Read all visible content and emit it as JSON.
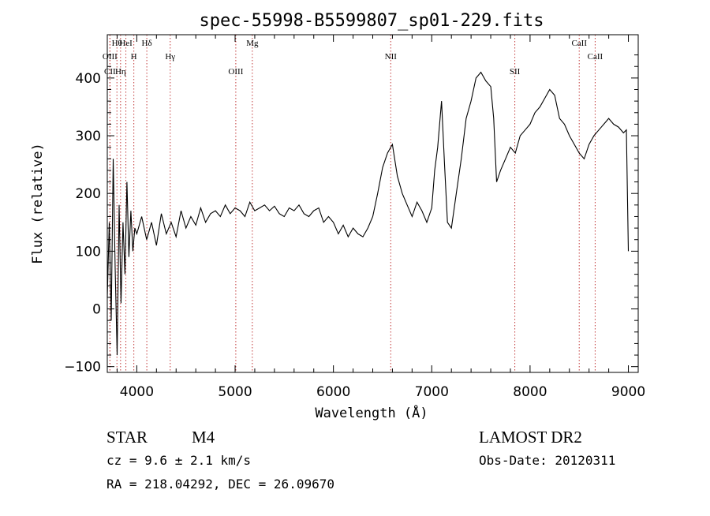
{
  "chart_data": {
    "type": "line",
    "title": "spec-55998-B5599807_sp01-229.fits",
    "xlabel": "Wavelength (Å)",
    "ylabel": "Flux (relative)",
    "xlim": [
      3700,
      9100
    ],
    "ylim": [
      -110,
      475
    ],
    "xticks": [
      4000,
      5000,
      6000,
      7000,
      8000,
      9000
    ],
    "yticks": [
      -100,
      0,
      100,
      200,
      300,
      400
    ],
    "grid": false,
    "series": [
      {
        "color": "#000000",
        "x": [
          3700,
          3720,
          3740,
          3760,
          3780,
          3800,
          3820,
          3840,
          3860,
          3880,
          3900,
          3920,
          3940,
          3960,
          3980,
          4000,
          4050,
          4100,
          4150,
          4200,
          4250,
          4300,
          4350,
          4400,
          4450,
          4500,
          4550,
          4600,
          4650,
          4700,
          4750,
          4800,
          4850,
          4900,
          4950,
          5000,
          5050,
          5100,
          5150,
          5200,
          5250,
          5300,
          5350,
          5400,
          5450,
          5500,
          5550,
          5600,
          5650,
          5700,
          5750,
          5800,
          5850,
          5900,
          5950,
          6000,
          6050,
          6100,
          6150,
          6200,
          6250,
          6300,
          6350,
          6400,
          6450,
          6500,
          6550,
          6600,
          6650,
          6700,
          6750,
          6800,
          6850,
          6900,
          6950,
          7000,
          7030,
          7060,
          7100,
          7130,
          7160,
          7200,
          7250,
          7300,
          7350,
          7400,
          7450,
          7500,
          7550,
          7600,
          7630,
          7660,
          7700,
          7750,
          7800,
          7850,
          7900,
          7950,
          8000,
          8050,
          8100,
          8150,
          8200,
          8250,
          8300,
          8350,
          8400,
          8450,
          8500,
          8550,
          8600,
          8650,
          8700,
          8750,
          8800,
          8850,
          8900,
          8950,
          8980,
          9000
        ],
        "values": [
          20,
          150,
          -20,
          260,
          70,
          -80,
          180,
          10,
          150,
          60,
          220,
          90,
          170,
          100,
          140,
          130,
          160,
          120,
          150,
          110,
          165,
          130,
          150,
          125,
          170,
          140,
          160,
          145,
          175,
          150,
          165,
          170,
          160,
          180,
          165,
          175,
          170,
          160,
          185,
          170,
          175,
          180,
          170,
          178,
          165,
          160,
          175,
          170,
          180,
          165,
          160,
          170,
          175,
          150,
          160,
          150,
          130,
          145,
          125,
          140,
          130,
          125,
          140,
          160,
          200,
          245,
          270,
          285,
          230,
          200,
          180,
          160,
          185,
          170,
          150,
          175,
          240,
          280,
          360,
          250,
          150,
          140,
          200,
          260,
          330,
          360,
          400,
          410,
          395,
          385,
          330,
          220,
          240,
          260,
          280,
          270,
          300,
          310,
          320,
          340,
          350,
          365,
          380,
          370,
          330,
          320,
          300,
          285,
          270,
          260,
          285,
          300,
          310,
          320,
          330,
          320,
          315,
          305,
          310,
          100
        ]
      }
    ],
    "lines": [
      {
        "label": "Hθ",
        "x": 3798
      },
      {
        "label": "H",
        "x": 3970
      },
      {
        "label": "CII",
        "x": 3727
      },
      {
        "label": "HeI",
        "x": 3889
      },
      {
        "label": "OIII",
        "x": 3727
      },
      {
        "label": "Hη",
        "x": 3835
      },
      {
        "label": "Hδ",
        "x": 4102
      },
      {
        "label": "Hγ",
        "x": 4340
      },
      {
        "label": "OIII",
        "x": 5007
      },
      {
        "label": "Mg",
        "x": 5175
      },
      {
        "label": "NII",
        "x": 6583
      },
      {
        "label": "SII",
        "x": 7845
      },
      {
        "label": "CaII",
        "x": 8500
      },
      {
        "label": "CaII",
        "x": 8662
      }
    ]
  },
  "footer": {
    "class": "STAR",
    "subclass": "M4",
    "survey": "LAMOST DR2",
    "cz": "cz = 9.6 ± 2.1 km/s",
    "obs_date": "Obs-Date: 20120311",
    "radec": "RA = 218.04292, DEC =  26.09670"
  }
}
